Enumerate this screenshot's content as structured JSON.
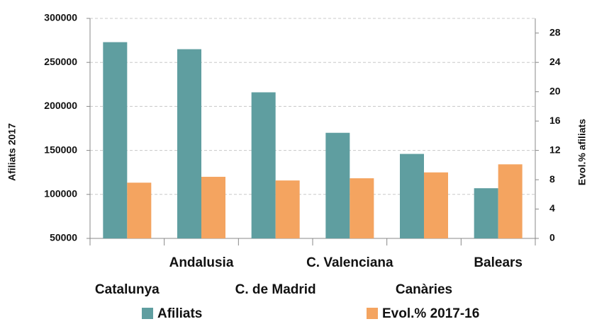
{
  "chart_data": {
    "type": "bar",
    "categories": [
      "Catalunya",
      "Andalusia",
      "C. de Madrid",
      "C. Valenciana",
      "Canàries",
      "Balears"
    ],
    "series": [
      {
        "name": "Afiliats",
        "color": "#5f9ea0",
        "values": [
          273000,
          265000,
          216000,
          170000,
          146000,
          107000
        ]
      },
      {
        "name": "Evol.% 2017-16",
        "color": "#f4a460",
        "axis": "y2",
        "values": [
          7.6,
          8.4,
          7.9,
          8.2,
          9.0,
          10.1
        ]
      }
    ],
    "ylabel": "Afiliats 2017",
    "y2label": "Evol.% afiliats",
    "ylim": [
      50000,
      300000
    ],
    "yticks": [
      50000,
      100000,
      150000,
      200000,
      250000,
      300000
    ],
    "y2lim": [
      0,
      30
    ],
    "y2ticks": [
      0,
      4,
      8,
      12,
      16,
      20,
      24,
      28
    ],
    "grid": true,
    "legend": "bottom"
  }
}
